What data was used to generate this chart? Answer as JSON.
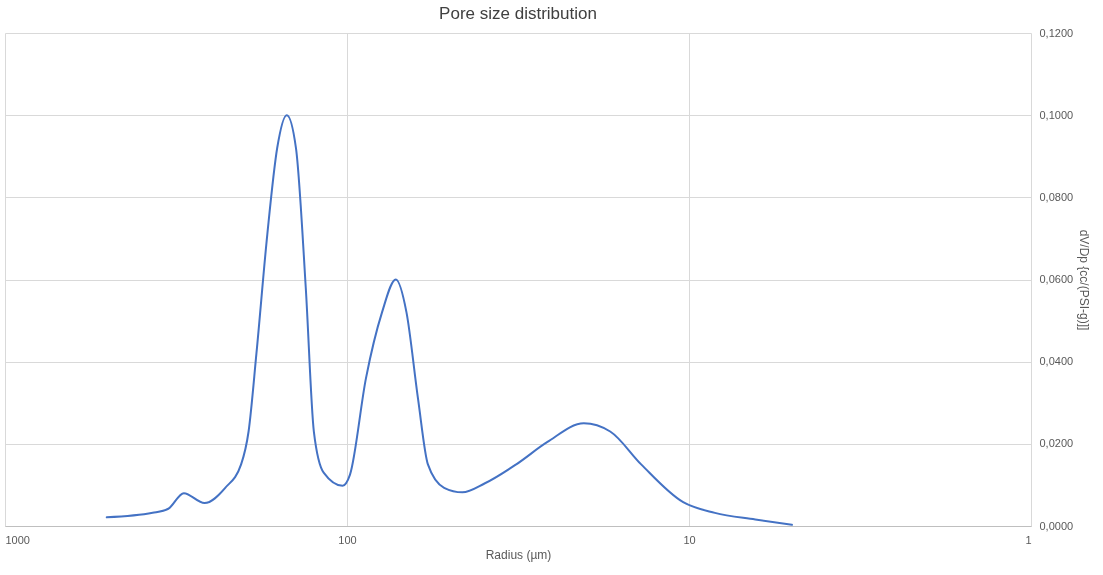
{
  "chart_data": {
    "type": "line",
    "title": "Pore size distribution",
    "xlabel": "Radius (µm)",
    "ylabel": "dV/Dp {cc/(PSI-g)]]",
    "log": "x",
    "xlim": [
      1000,
      1
    ],
    "xticks": [
      1000,
      100,
      10,
      1
    ],
    "ylim": [
      0,
      0.12
    ],
    "yticks": [
      {
        "value": 0,
        "label": "0,0000"
      },
      {
        "value": 0.02,
        "label": "0,0200"
      },
      {
        "value": 0.04,
        "label": "0,0400"
      },
      {
        "value": 0.06,
        "label": "0,0600"
      },
      {
        "value": 0.08,
        "label": "0,0800"
      },
      {
        "value": 0.1,
        "label": "0,1000"
      },
      {
        "value": 0.12,
        "label": "0,1200"
      }
    ],
    "grid": true,
    "marker": "none",
    "line_style": "solid",
    "x": [
      504,
      370,
      333,
      300,
      261,
      227,
      204,
      194,
      184,
      171,
      160,
      150,
      141,
      132,
      125,
      117,
      103,
      98,
      88,
      79,
      72,
      67,
      62,
      58,
      52,
      46,
      39.5,
      32,
      26,
      20.3,
      17,
      13.8,
      10.4,
      8.4,
      6.4,
      5.0
    ],
    "series": [
      {
        "color": "#4472c4",
        "values": [
          0.0021,
          0.0032,
          0.0042,
          0.008,
          0.0056,
          0.0093,
          0.015,
          0.023,
          0.042,
          0.071,
          0.092,
          0.1,
          0.092,
          0.058,
          0.023,
          0.013,
          0.0098,
          0.0125,
          0.036,
          0.052,
          0.06,
          0.052,
          0.031,
          0.015,
          0.0093,
          0.0082,
          0.0104,
          0.015,
          0.0204,
          0.025,
          0.023,
          0.015,
          0.0058,
          0.0032,
          0.0016,
          0.0003
        ]
      }
    ]
  }
}
